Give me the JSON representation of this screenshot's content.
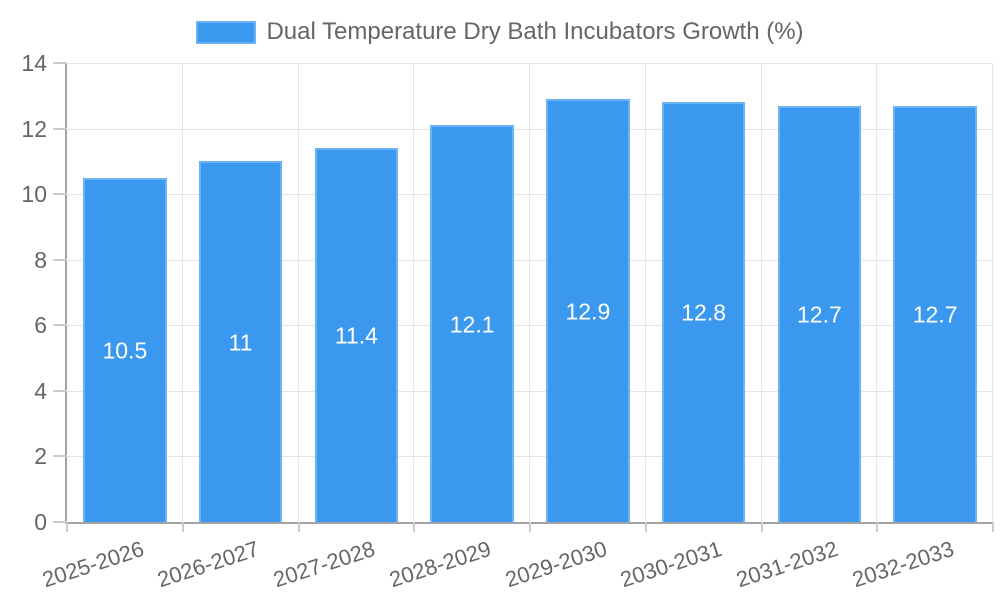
{
  "chart_data": {
    "type": "bar",
    "title": "Dual Temperature Dry Bath Incubators Growth (%)",
    "legend_entries": [
      "Dual Temperature Dry Bath Incubators Growth (%)"
    ],
    "legend_position": "top",
    "categories": [
      "2025-2026",
      "2026-2027",
      "2027-2028",
      "2028-2029",
      "2029-2030",
      "2030-2031",
      "2031-2032",
      "2032-2033"
    ],
    "values": [
      10.5,
      11,
      11.4,
      12.1,
      12.9,
      12.8,
      12.7,
      12.7
    ],
    "value_labels": [
      "10.5",
      "11",
      "11.4",
      "12.1",
      "12.9",
      "12.8",
      "12.7",
      "12.7"
    ],
    "xlabel": "",
    "ylabel": "",
    "ylim": [
      0,
      14
    ],
    "ytick_step": 2,
    "ytick_labels": [
      "0",
      "2",
      "4",
      "6",
      "8",
      "10",
      "12",
      "14"
    ],
    "grid": true,
    "x_label_rotation_deg": -18,
    "colors": {
      "bar_fill": "#3a99ee",
      "bar_border": "#6cb2f4",
      "grid_line": "#e5e5e5",
      "tick_mark": "#cccccc",
      "axis_line": "#a3a3a3",
      "text": "#666666",
      "value_label_text": "#ffffff",
      "background": "#ffffff"
    }
  }
}
